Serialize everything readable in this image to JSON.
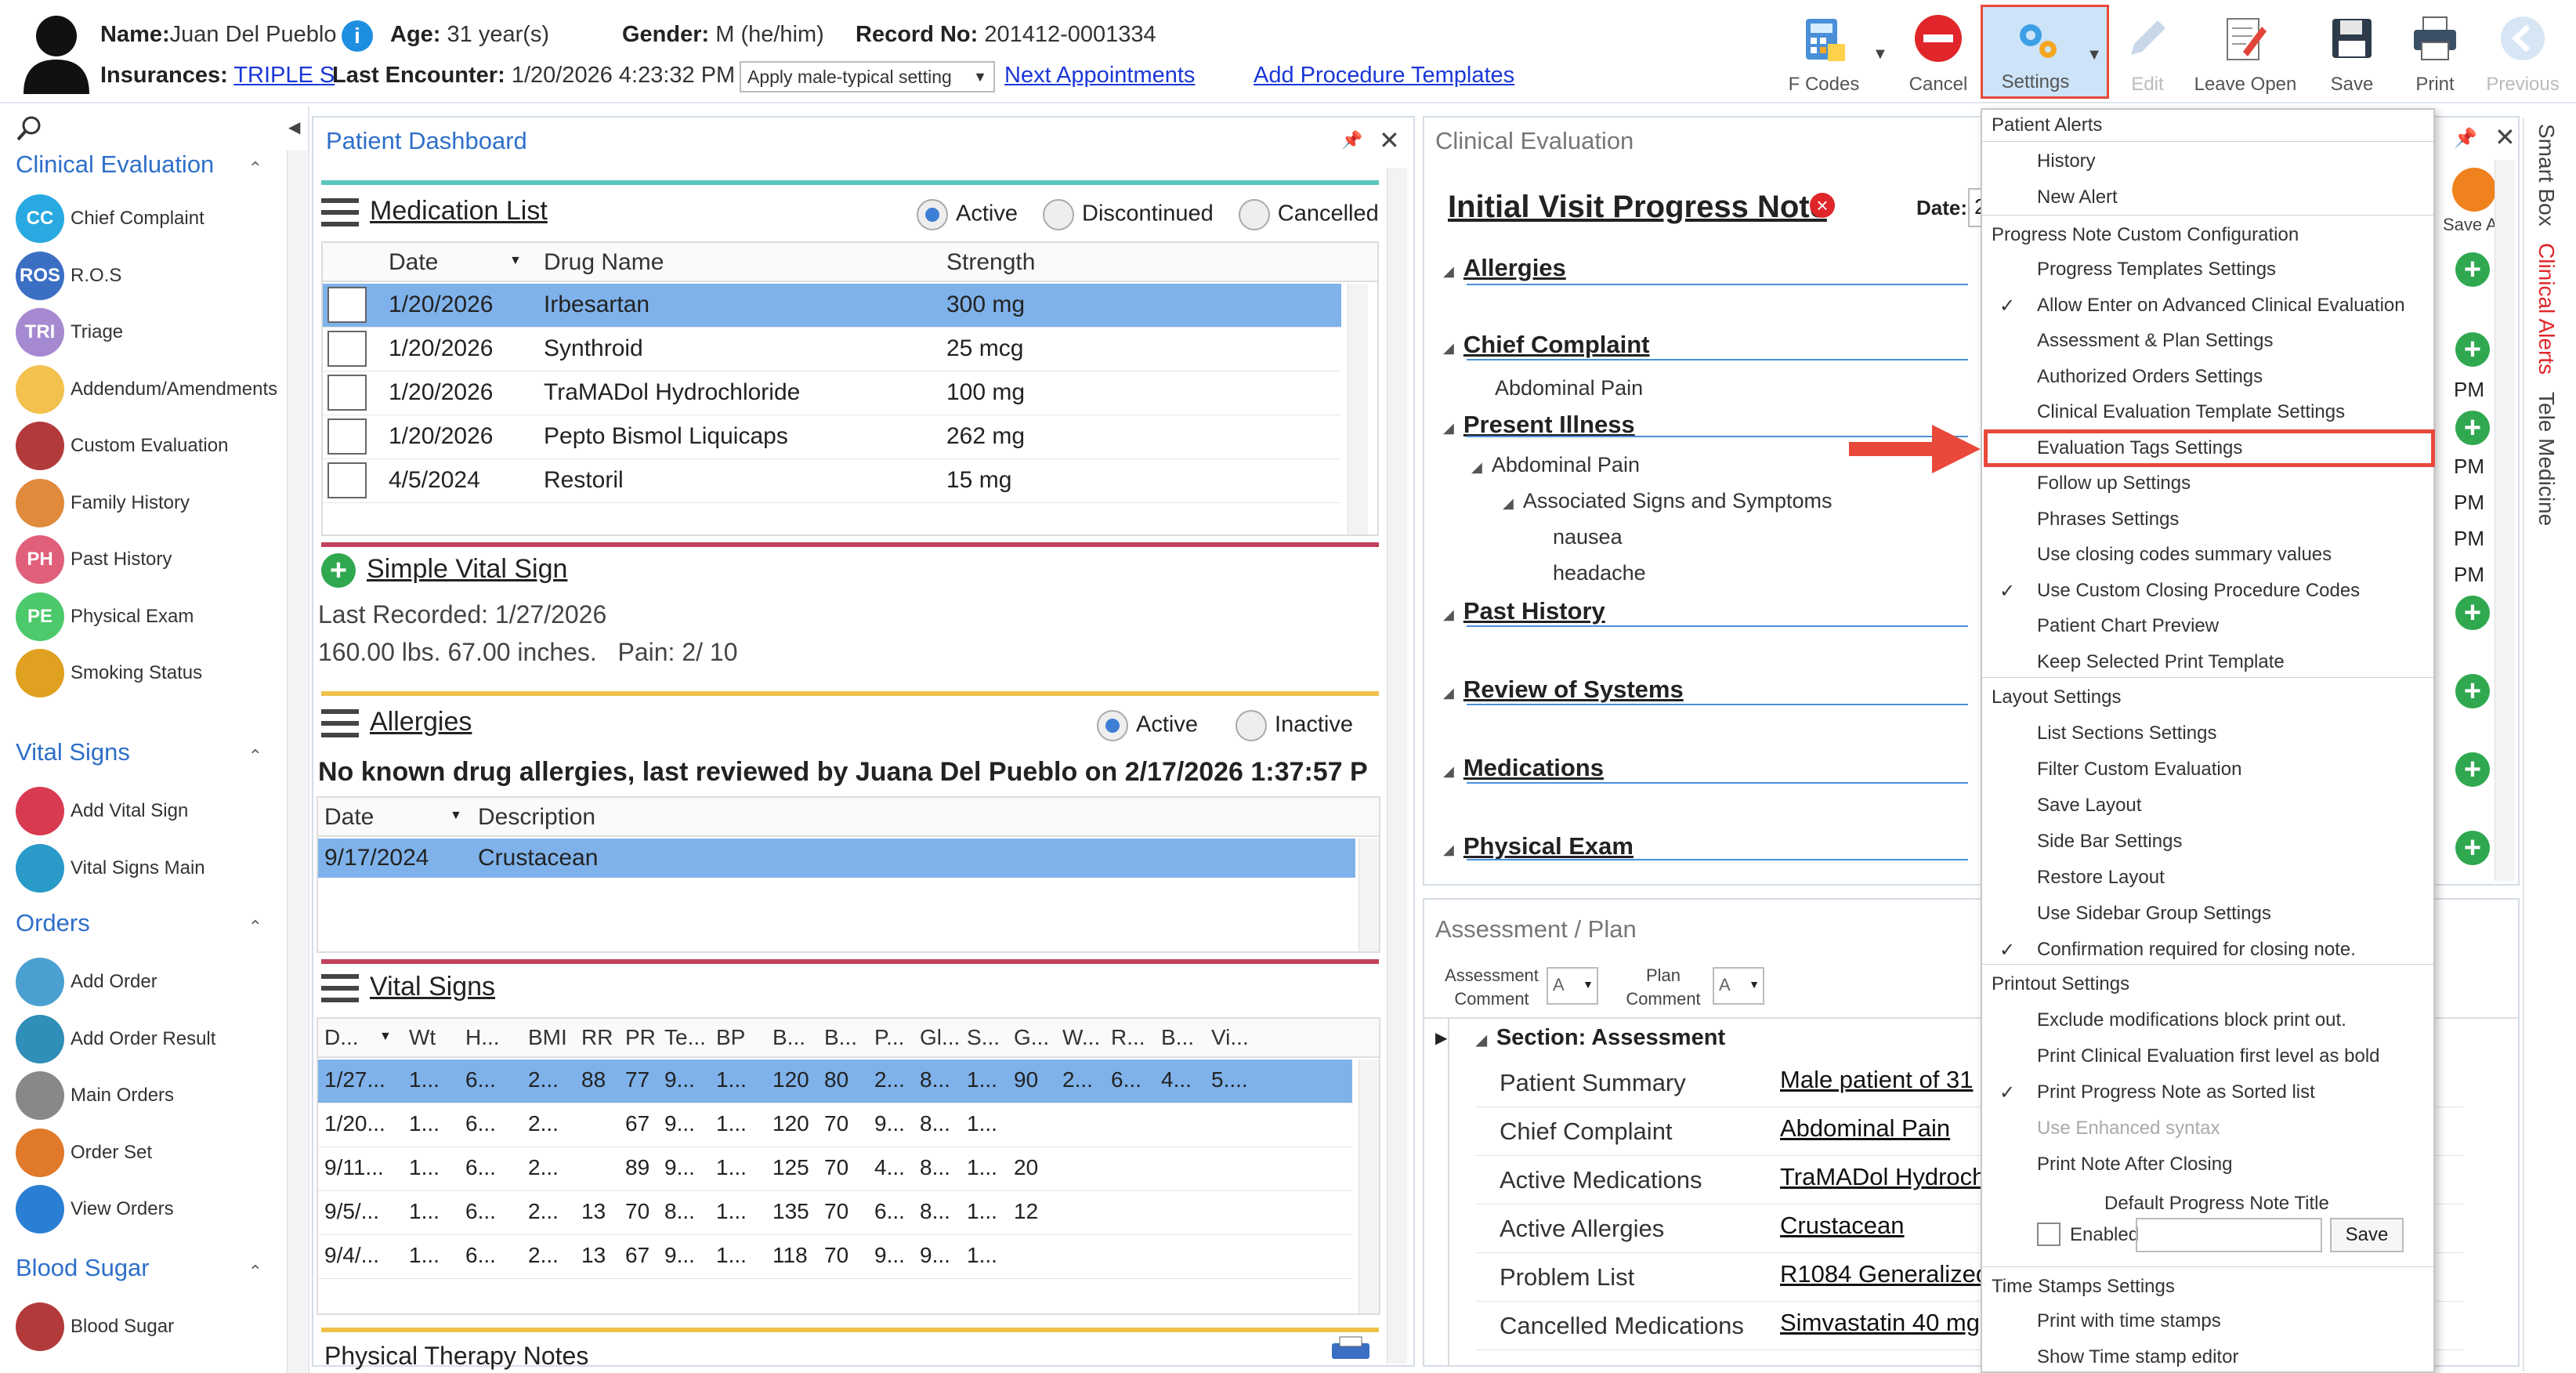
{
  "header": {
    "name_label": "Name:",
    "name_value": "Juan Del Pueblo",
    "age_label": "Age:",
    "age_value": "31 year(s)",
    "gender_label": "Gender:",
    "gender_value": "M (he/him)",
    "record_label": "Record No:",
    "record_value": "201412-0001334",
    "ins_label": "Insurances:",
    "ins_value": "TRIPLE S",
    "last_enc_label": "Last Encounter:",
    "last_enc_value": "1/20/2026 4:23:32 PM",
    "apply_select": "Apply male-typical setting",
    "next_appt": "Next Appointments",
    "add_proc": "Add Procedure Templates"
  },
  "toolbar": {
    "fcodes": "F Codes",
    "cancel": "Cancel",
    "settings": "Settings",
    "edit": "Edit",
    "leave_open": "Leave Open",
    "save": "Save",
    "print": "Print",
    "previous": "Previous"
  },
  "sidebar": {
    "sections": [
      {
        "title": "Clinical Evaluation"
      },
      {
        "title": "Vital Signs"
      },
      {
        "title": "Orders"
      },
      {
        "title": "Blood Sugar"
      }
    ],
    "clinical_items": [
      {
        "abbr": "CC",
        "label": "Chief Complaint",
        "color": "#29a9e1"
      },
      {
        "abbr": "ROS",
        "label": "R.O.S",
        "color": "#3b6fc4"
      },
      {
        "abbr": "TRI",
        "label": "Triage",
        "color": "#a58ad1"
      },
      {
        "abbr": "",
        "label": "Addendum/Amendments",
        "color": "#f2c14e"
      },
      {
        "abbr": "",
        "label": "Custom Evaluation",
        "color": "#b33a3a"
      },
      {
        "abbr": "",
        "label": "Family History",
        "color": "#e08a3c"
      },
      {
        "abbr": "PH",
        "label": "Past History",
        "color": "#e0607a"
      },
      {
        "abbr": "PE",
        "label": "Physical Exam",
        "color": "#4cc96a"
      },
      {
        "abbr": "",
        "label": "Smoking Status",
        "color": "#e0a020"
      }
    ],
    "vital_items": [
      {
        "label": "Add Vital Sign",
        "color": "#d83a52"
      },
      {
        "label": "Vital Signs Main",
        "color": "#2a9ac9"
      }
    ],
    "order_items": [
      {
        "label": "Add Order",
        "color": "#4aa0d0"
      },
      {
        "label": "Add Order Result",
        "color": "#2f8fb8"
      },
      {
        "label": "Main Orders",
        "color": "#888888"
      },
      {
        "label": "Order Set",
        "color": "#e07a2a"
      },
      {
        "label": "View Orders",
        "color": "#2a7fd4"
      }
    ],
    "sugar_items": [
      {
        "label": "Blood Sugar",
        "color": "#b33a3a"
      }
    ]
  },
  "dashboard": {
    "title": "Patient Dashboard",
    "medication": {
      "title": "Medication List",
      "filters": [
        "Active",
        "Discontinued",
        "Cancelled"
      ],
      "columns": [
        "Date",
        "Drug Name",
        "Strength"
      ],
      "rows": [
        [
          "1/20/2026",
          "Irbesartan",
          "300 mg"
        ],
        [
          "1/20/2026",
          "Synthroid",
          "25 mcg"
        ],
        [
          "1/20/2026",
          "TraMADol Hydrochloride",
          "100 mg"
        ],
        [
          "1/20/2026",
          "Pepto Bismol Liquicaps",
          "262 mg"
        ],
        [
          "4/5/2024",
          "Restoril",
          "15 mg"
        ]
      ]
    },
    "vital_simple": {
      "title": "Simple Vital Sign",
      "last": "Last Recorded: 1/27/2026",
      "detail": "160.00 lbs. 67.00 inches.   Pain: 2/ 10"
    },
    "allergies": {
      "title": "Allergies",
      "filters": [
        "Active",
        "Inactive"
      ],
      "note": "No known drug allergies, last reviewed by Juana Del Pueblo on 2/17/2026 1:37:57 P",
      "columns": [
        "Date",
        "Description"
      ],
      "rows": [
        [
          "9/17/2024",
          "Crustacean"
        ]
      ]
    },
    "vitals": {
      "title": "Vital Signs",
      "columns": [
        "D...",
        "Wt",
        "H...",
        "BMI",
        "RR",
        "PR",
        "Te...",
        "BP",
        "B...",
        "B...",
        "P...",
        "Gl...",
        "S...",
        "G...",
        "W...",
        "R...",
        "B...",
        "Vi..."
      ],
      "rows": [
        [
          "1/27...",
          "1...",
          "6...",
          "2...",
          "88",
          "77",
          "9...",
          "1...",
          "120",
          "80",
          "2...",
          "8...",
          "1...",
          "90",
          "2...",
          "6...",
          "4...",
          "5...."
        ],
        [
          "1/20...",
          "1...",
          "6...",
          "2...",
          "",
          "67",
          "9...",
          "1...",
          "120",
          "70",
          "9...",
          "8...",
          "1...",
          "",
          "",
          "",
          "",
          ""
        ],
        [
          "9/11...",
          "1...",
          "6...",
          "2...",
          "",
          "89",
          "9...",
          "1...",
          "125",
          "70",
          "4...",
          "8...",
          "1...",
          "20",
          "",
          "",
          "",
          ""
        ],
        [
          "9/5/...",
          "1...",
          "6...",
          "2...",
          "13",
          "70",
          "8...",
          "1...",
          "135",
          "70",
          "6...",
          "8...",
          "1...",
          "12",
          "",
          "",
          "",
          ""
        ],
        [
          "9/4/...",
          "1...",
          "6...",
          "2...",
          "13",
          "67",
          "9...",
          "1...",
          "118",
          "70",
          "9...",
          "9...",
          "1...",
          "",
          "",
          "",
          "",
          ""
        ]
      ]
    },
    "pt_notes": "Physical Therapy Notes"
  },
  "clinical": {
    "title": "Clinical Evaluation",
    "note_title": "Initial Visit Progress Note",
    "date_label": "Date:",
    "date_value": "2",
    "save_as": "Save As",
    "sections": {
      "allergies": "Allergies",
      "chief": "Chief Complaint",
      "chief_item": "Abdominal Pain",
      "present": "Present Illness",
      "present_item": "Abdominal Pain",
      "assoc": "Associated Signs and Symptoms",
      "nausea": "nausea",
      "headache": "headache",
      "past": "Past History",
      "ros": "Review of Systems",
      "meds": "Medications",
      "pe": "Physical Exam"
    },
    "pm": "PM"
  },
  "assessment": {
    "title": "Assessment / Plan",
    "assess_comment": "Assessment Comment",
    "plan_comment": "Plan Comment",
    "section": "Section: Assessment",
    "rows": [
      {
        "label": "Patient Summary",
        "value": "Male patient of 31"
      },
      {
        "label": "Chief Complaint",
        "value": "Abdominal Pain"
      },
      {
        "label": "Active Medications",
        "value": "TraMADol Hydroch"
      },
      {
        "label": "Active Allergies",
        "value": "Crustacean"
      },
      {
        "label": "Problem List",
        "value": "R1084 Generalized"
      },
      {
        "label": "Cancelled Medications",
        "value": "Simvastatin 40 mg"
      }
    ],
    "ns": "ns"
  },
  "menu": {
    "patient_alerts": "Patient Alerts",
    "history": "History",
    "new_alert": "New Alert",
    "pn_config": "Progress Note Custom Configuration",
    "pn_items": [
      {
        "label": "Progress Templates Settings",
        "checked": false
      },
      {
        "label": "Allow Enter on Advanced Clinical Evaluation",
        "checked": true
      },
      {
        "label": "Assessment & Plan Settings",
        "checked": false
      },
      {
        "label": "Authorized Orders Settings",
        "checked": false
      },
      {
        "label": "Clinical Evaluation Template Settings",
        "checked": false
      },
      {
        "label": "Evaluation Tags Settings",
        "checked": false
      },
      {
        "label": "Follow up Settings",
        "checked": false
      },
      {
        "label": "Phrases Settings",
        "checked": false
      },
      {
        "label": "Use closing codes summary values",
        "checked": false
      },
      {
        "label": "Use Custom Closing Procedure Codes",
        "checked": true
      },
      {
        "label": "Patient Chart Preview",
        "checked": false
      },
      {
        "label": "Keep Selected Print Template",
        "checked": false
      }
    ],
    "layout": "Layout Settings",
    "layout_items": [
      {
        "label": "List Sections Settings",
        "checked": false
      },
      {
        "label": "Filter Custom Evaluation",
        "checked": false
      },
      {
        "label": "Save Layout",
        "checked": false
      },
      {
        "label": "Side Bar Settings",
        "checked": false
      },
      {
        "label": "Restore Layout",
        "checked": false
      },
      {
        "label": "Use Sidebar Group Settings",
        "checked": false
      },
      {
        "label": "Confirmation required for closing note.",
        "checked": true
      }
    ],
    "printout": "Printout Settings",
    "printout_items": [
      {
        "label": "Exclude modifications block print out.",
        "checked": false
      },
      {
        "label": "Print Clinical Evaluation first level as bold",
        "checked": false
      },
      {
        "label": "Print Progress Note as Sorted list",
        "checked": true
      },
      {
        "label": "Use Enhanced syntax",
        "checked": false
      },
      {
        "label": "Print Note After Closing",
        "checked": false
      }
    ],
    "default_title": "Default Progress Note Title",
    "enabled": "Enabled",
    "save": "Save",
    "timestamps": "Time Stamps Settings",
    "ts_items": [
      {
        "label": "Print with time stamps"
      },
      {
        "label": "Show Time stamp editor"
      }
    ]
  },
  "right_tabs": {
    "smart_box": "Smart Box",
    "clinical_alerts": "Clinical Alerts",
    "tele_medicine": "Tele Medicine"
  },
  "colors": {
    "accent": "#2e6fc9",
    "highlight": "#e8493a",
    "selected_row": "#7fb2ea"
  }
}
